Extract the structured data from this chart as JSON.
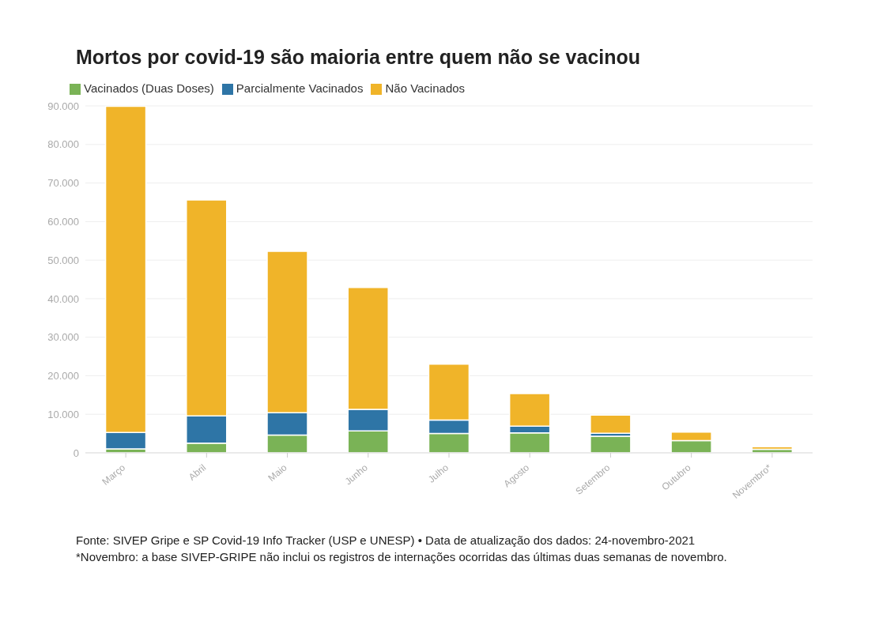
{
  "chart_data": {
    "type": "bar",
    "title": "Mortos por covid-19 são maioria entre quem não se vacinou",
    "categories": [
      "Março",
      "Abril",
      "Maio",
      "Junho",
      "Julho",
      "Agosto",
      "Setembro",
      "Outubro",
      "Novembro*"
    ],
    "series": [
      {
        "name": "Vacinados (Duas Doses)",
        "color": "#7ab356",
        "values": [
          1000,
          2500,
          4600,
          5700,
          5000,
          5200,
          4300,
          3200,
          900
        ]
      },
      {
        "name": "Parcialmente Vacinados",
        "color": "#2e75a6",
        "values": [
          4300,
          7100,
          5800,
          5600,
          3500,
          1700,
          800,
          null,
          null
        ]
      },
      {
        "name": "Não Vacinados",
        "color": "#f0b429",
        "values": [
          84600,
          56000,
          41900,
          31600,
          14500,
          8500,
          4700,
          2200,
          700
        ]
      }
    ],
    "stacked": true,
    "ylim": [
      0,
      90000
    ],
    "yticks": [
      {
        "value": 0,
        "label": "0"
      },
      {
        "value": 10000,
        "label": "10.000"
      },
      {
        "value": 20000,
        "label": "20.000"
      },
      {
        "value": 30000,
        "label": "30.000"
      },
      {
        "value": 40000,
        "label": "40.000"
      },
      {
        "value": 50000,
        "label": "50.000"
      },
      {
        "value": 60000,
        "label": "60.000"
      },
      {
        "value": 70000,
        "label": "70.000"
      },
      {
        "value": 80000,
        "label": "80.000"
      },
      {
        "value": 90000,
        "label": "90.000"
      }
    ],
    "grid": "y",
    "legend": "top left",
    "annotations": [
      "Fonte: SIVEP Gripe e SP Covid-19 Info Tracker (USP e UNESP) • Data de atualização dos dados: 24-novembro-2021",
      "*Novembro: a base SIVEP-GRIPE não inclui os registros de internações ocorridas das últimas duas semanas de novembro."
    ]
  }
}
